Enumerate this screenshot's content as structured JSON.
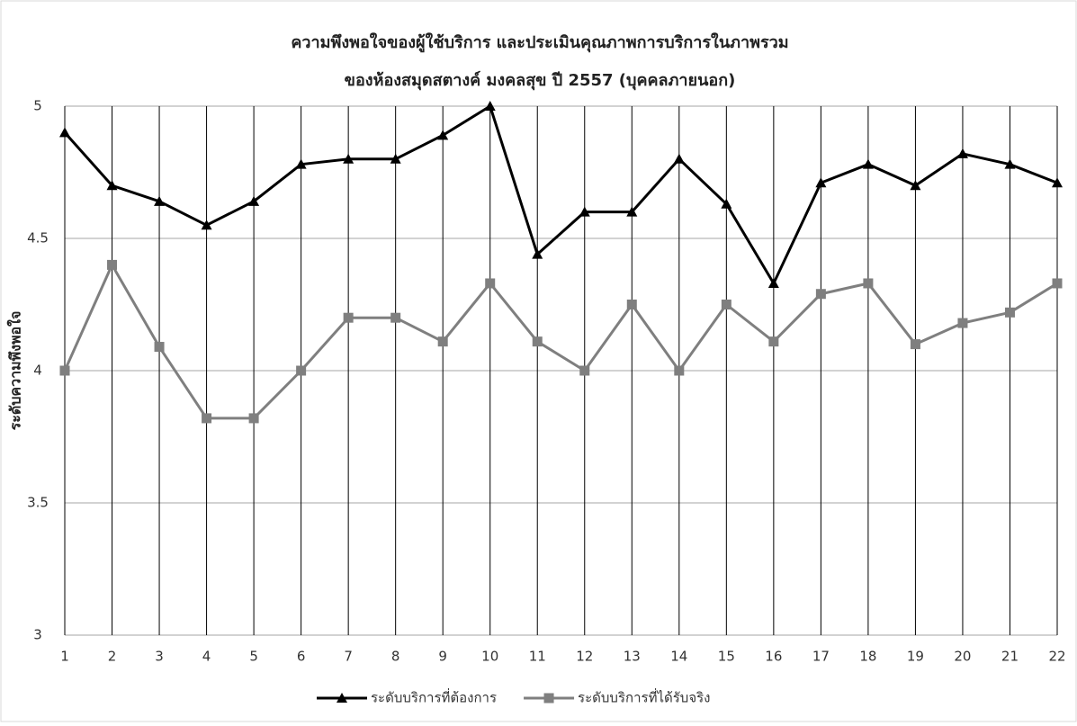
{
  "chart_data": {
    "type": "line",
    "title": "ความพึงพอใจของผู้ใช้บริการ และประเมินคุณภาพการบริการในภาพรวม",
    "subtitle": "ของห้องสมุดสตางค์ มงคลสุข ปี 2557 (บุคคลภายนอก)",
    "y_label": "ระดับความพึงพอใจ",
    "categories": [
      "1",
      "2",
      "3",
      "4",
      "5",
      "6",
      "7",
      "8",
      "9",
      "10",
      "11",
      "12",
      "13",
      "14",
      "15",
      "16",
      "17",
      "18",
      "19",
      "20",
      "21",
      "22"
    ],
    "series": [
      {
        "name": "ระดับบริการที่ต้องการ",
        "color": "#000000",
        "marker": "triangle",
        "values": [
          4.9,
          4.7,
          4.64,
          4.55,
          4.64,
          4.78,
          4.8,
          4.8,
          4.89,
          5.0,
          4.44,
          4.6,
          4.6,
          4.8,
          4.63,
          4.33,
          4.71,
          4.78,
          4.7,
          4.82,
          4.78,
          4.71
        ]
      },
      {
        "name": "ระดับบริการที่ได้รับจริง",
        "color": "#7f7f7f",
        "marker": "square",
        "values": [
          4.0,
          4.4,
          4.09,
          3.82,
          3.82,
          4.0,
          4.2,
          4.2,
          4.11,
          4.33,
          4.11,
          4.0,
          4.25,
          4.0,
          4.25,
          4.11,
          4.29,
          4.33,
          4.1,
          4.18,
          4.22,
          4.33
        ]
      }
    ],
    "ylim": [
      3,
      5
    ],
    "yticks": [
      3,
      3.5,
      4,
      4.5,
      5
    ],
    "grid": true,
    "legend": "bottom"
  }
}
